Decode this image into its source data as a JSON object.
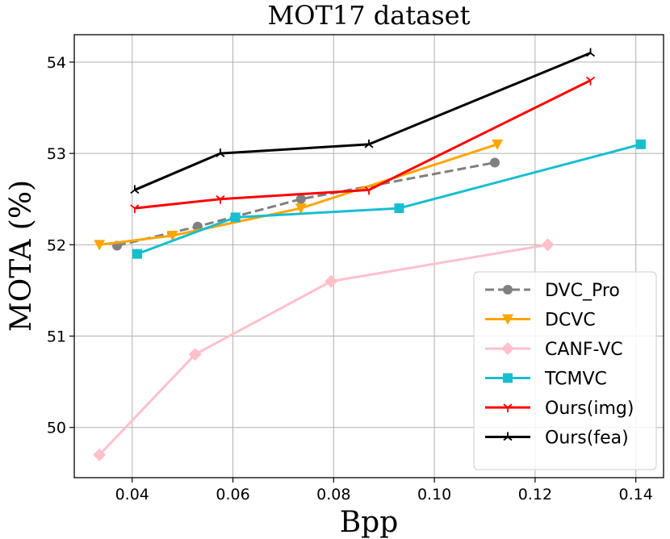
{
  "chart_data": {
    "type": "line",
    "title": "MOT17 dataset",
    "xlabel": "Bpp",
    "ylabel": "MOTA (%)",
    "xlim": [
      0.0285,
      0.1455
    ],
    "ylim": [
      49.45,
      54.3
    ],
    "xticks": [
      0.04,
      0.06,
      0.08,
      0.1,
      0.12,
      0.14
    ],
    "xtick_labels": [
      "0.04",
      "0.06",
      "0.08",
      "0.10",
      "0.12",
      "0.14"
    ],
    "yticks": [
      50,
      51,
      52,
      53,
      54
    ],
    "ytick_labels": [
      "50",
      "51",
      "52",
      "53",
      "54"
    ],
    "grid": true,
    "legend_position": "lower right",
    "series": [
      {
        "name": "DVC_Pro",
        "color": "#808080",
        "marker": "circle",
        "dashed": true,
        "x": [
          0.037,
          0.053,
          0.0735,
          0.112
        ],
        "y": [
          51.99,
          52.2,
          52.5,
          52.9
        ]
      },
      {
        "name": "DCVC",
        "color": "#ffa500",
        "marker": "triangle-down",
        "dashed": false,
        "x": [
          0.0335,
          0.048,
          0.0735,
          0.1125
        ],
        "y": [
          52.0,
          52.1,
          52.4,
          53.1
        ]
      },
      {
        "name": "CANF-VC",
        "color": "#ffc0cb",
        "marker": "diamond",
        "dashed": false,
        "x": [
          0.0335,
          0.0525,
          0.0795,
          0.1225
        ],
        "y": [
          49.7,
          50.8,
          51.6,
          52.0
        ]
      },
      {
        "name": "TCMVC",
        "color": "#17becf",
        "marker": "square",
        "dashed": false,
        "x": [
          0.041,
          0.0605,
          0.093,
          0.141
        ],
        "y": [
          51.9,
          52.3,
          52.4,
          53.1
        ]
      },
      {
        "name": "Ours(img)",
        "color": "#ff0000",
        "marker": "tri-down",
        "dashed": false,
        "x": [
          0.0405,
          0.0575,
          0.087,
          0.131
        ],
        "y": [
          52.4,
          52.5,
          52.6,
          53.8
        ]
      },
      {
        "name": "Ours(fea)",
        "color": "#000000",
        "marker": "tri-up",
        "dashed": false,
        "x": [
          0.0405,
          0.0575,
          0.087,
          0.131
        ],
        "y": [
          52.6,
          53.0,
          53.1,
          54.1
        ]
      }
    ]
  }
}
